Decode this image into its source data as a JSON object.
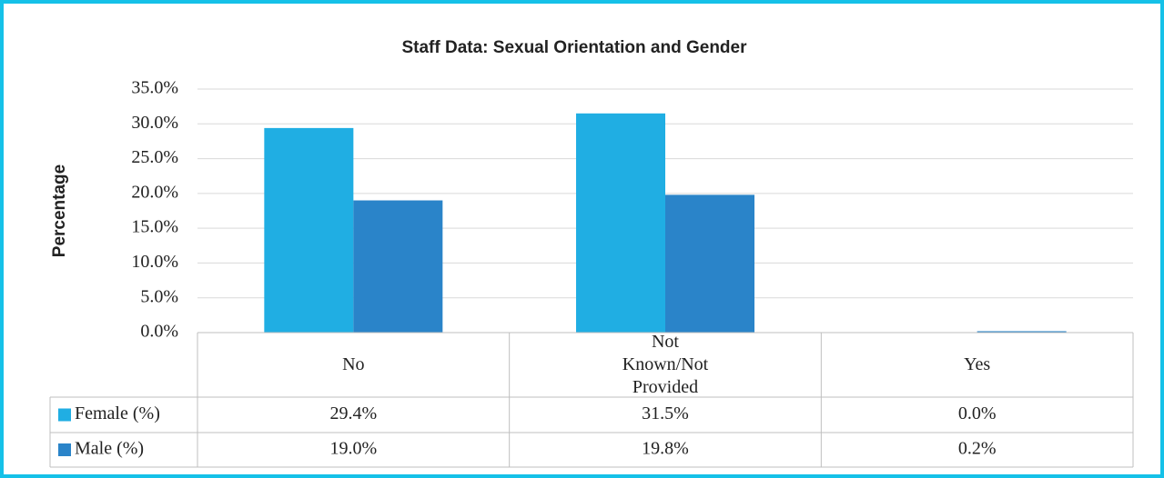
{
  "chart_data": {
    "type": "bar",
    "title": "Staff Data: Sexual Orientation and Gender",
    "y_label": "Percentage",
    "categories": [
      "No",
      "Not Known/Not Provided",
      "Yes"
    ],
    "series": [
      {
        "name": "Female (%)",
        "color": "#20aee3",
        "values": [
          29.4,
          31.5,
          0.0
        ],
        "value_labels": [
          "29.4%",
          "31.5%",
          "0.0%"
        ]
      },
      {
        "name": "Male (%)",
        "color": "#2a84c9",
        "values": [
          19.0,
          19.8,
          0.2
        ],
        "value_labels": [
          "19.0%",
          "19.8%",
          "0.2%"
        ]
      }
    ],
    "ylim": [
      0,
      35
    ],
    "yticks": [
      {
        "value": 0,
        "label": "0.0%"
      },
      {
        "value": 5,
        "label": "5.0%"
      },
      {
        "value": 10,
        "label": "10.0%"
      },
      {
        "value": 15,
        "label": "15.0%"
      },
      {
        "value": 20,
        "label": "20.0%"
      },
      {
        "value": 25,
        "label": "25.0%"
      },
      {
        "value": 30,
        "label": "30.0%"
      },
      {
        "value": 35,
        "label": "35.0%"
      }
    ],
    "grid": true
  }
}
